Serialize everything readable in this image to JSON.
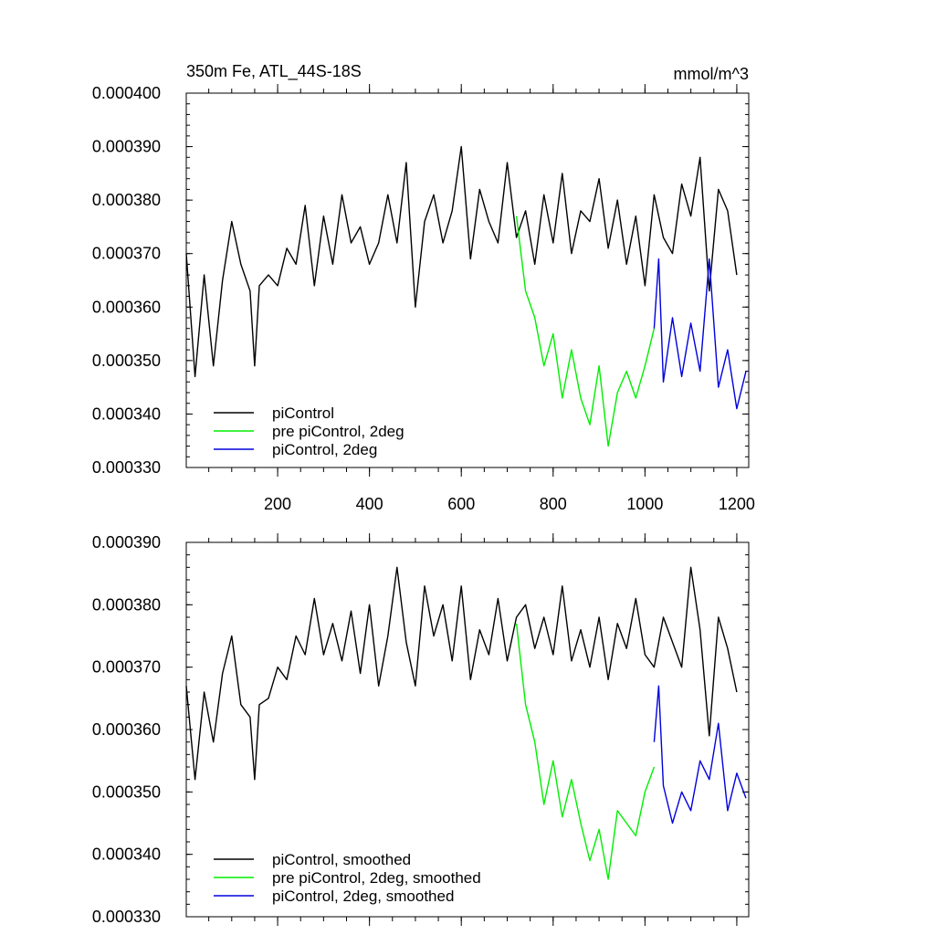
{
  "chart_data": [
    {
      "type": "line",
      "title": "350m Fe, ATL_44S-18S",
      "units": "mmol/m^3",
      "xlim": [
        1,
        1226
      ],
      "ylim": [
        0.00033,
        0.0004
      ],
      "xticks": [
        200,
        400,
        600,
        800,
        1000,
        1200
      ],
      "yticks": [
        "0.000400",
        "0.000390",
        "0.000380",
        "0.000370",
        "0.000360",
        "0.000350",
        "0.000340",
        "0.000330"
      ],
      "show_xtick_labels": true,
      "legend_position": "bottom-left",
      "series": [
        {
          "name": "piControl",
          "color": "#000000",
          "x": [
            1,
            20,
            40,
            60,
            80,
            100,
            120,
            140,
            150,
            160,
            180,
            200,
            220,
            240,
            260,
            280,
            300,
            320,
            340,
            360,
            380,
            400,
            420,
            440,
            460,
            480,
            500,
            520,
            540,
            560,
            580,
            600,
            620,
            640,
            660,
            680,
            700,
            720,
            740,
            760,
            780,
            800,
            820,
            840,
            860,
            880,
            900,
            920,
            940,
            960,
            980,
            1000,
            1020,
            1040,
            1060,
            1080,
            1100,
            1120,
            1140,
            1160,
            1180,
            1200
          ],
          "y": [
            0.00037,
            0.000347,
            0.000366,
            0.000349,
            0.000365,
            0.000376,
            0.000368,
            0.000363,
            0.000349,
            0.000364,
            0.000366,
            0.000364,
            0.000371,
            0.000368,
            0.000379,
            0.000364,
            0.000377,
            0.000368,
            0.000381,
            0.000372,
            0.000375,
            0.000368,
            0.000372,
            0.000381,
            0.000372,
            0.000387,
            0.00036,
            0.000376,
            0.000381,
            0.000372,
            0.000378,
            0.00039,
            0.000369,
            0.000382,
            0.000376,
            0.000372,
            0.000387,
            0.000373,
            0.000378,
            0.000368,
            0.000381,
            0.000372,
            0.000385,
            0.00037,
            0.000378,
            0.000376,
            0.000384,
            0.000371,
            0.00038,
            0.000368,
            0.000377,
            0.000364,
            0.000381,
            0.000373,
            0.00037,
            0.000383,
            0.000377,
            0.000388,
            0.000363,
            0.000382,
            0.000378,
            0.000366
          ]
        },
        {
          "name": "pre piControl, 2deg",
          "color": "#00ee00",
          "x": [
            720,
            740,
            760,
            780,
            800,
            820,
            840,
            860,
            880,
            900,
            920,
            940,
            960,
            980,
            1000,
            1020
          ],
          "y": [
            0.000377,
            0.000363,
            0.000358,
            0.000349,
            0.000355,
            0.000343,
            0.000352,
            0.000343,
            0.000338,
            0.000349,
            0.000334,
            0.000344,
            0.000348,
            0.000343,
            0.000349,
            0.000356
          ]
        },
        {
          "name": "piControl, 2deg",
          "color": "#0000dd",
          "x": [
            1020,
            1030,
            1040,
            1060,
            1080,
            1100,
            1120,
            1140,
            1160,
            1180,
            1200,
            1220
          ],
          "y": [
            0.000356,
            0.000369,
            0.000346,
            0.000358,
            0.000347,
            0.000357,
            0.000348,
            0.000369,
            0.000345,
            0.000352,
            0.000341,
            0.000348
          ]
        }
      ]
    },
    {
      "type": "line",
      "title": "",
      "units": "",
      "xlim": [
        1,
        1226
      ],
      "ylim": [
        0.00033,
        0.00039
      ],
      "xticks": [
        200,
        400,
        600,
        800,
        1000,
        1200
      ],
      "yticks": [
        "0.000390",
        "0.000380",
        "0.000370",
        "0.000360",
        "0.000350",
        "0.000340",
        "0.000330"
      ],
      "show_xtick_labels": false,
      "legend_position": "bottom-left",
      "series": [
        {
          "name": "piControl, smoothed",
          "color": "#000000",
          "x": [
            1,
            20,
            40,
            60,
            80,
            100,
            120,
            140,
            150,
            160,
            180,
            200,
            220,
            240,
            260,
            280,
            300,
            320,
            340,
            360,
            380,
            400,
            420,
            440,
            460,
            480,
            500,
            520,
            540,
            560,
            580,
            600,
            620,
            640,
            660,
            680,
            700,
            720,
            740,
            760,
            780,
            800,
            820,
            840,
            860,
            880,
            900,
            920,
            940,
            960,
            980,
            1000,
            1020,
            1040,
            1060,
            1080,
            1100,
            1120,
            1140,
            1160,
            1180,
            1200
          ],
          "y": [
            0.000367,
            0.000352,
            0.000366,
            0.000358,
            0.000369,
            0.000375,
            0.000364,
            0.000362,
            0.000352,
            0.000364,
            0.000365,
            0.00037,
            0.000368,
            0.000375,
            0.000372,
            0.000381,
            0.000372,
            0.000377,
            0.000371,
            0.000379,
            0.000369,
            0.00038,
            0.000367,
            0.000375,
            0.000386,
            0.000374,
            0.000367,
            0.000383,
            0.000375,
            0.00038,
            0.000371,
            0.000383,
            0.000368,
            0.000376,
            0.000372,
            0.000381,
            0.000371,
            0.000378,
            0.00038,
            0.000373,
            0.000378,
            0.000372,
            0.000383,
            0.000371,
            0.000376,
            0.00037,
            0.000378,
            0.000368,
            0.000377,
            0.000373,
            0.000381,
            0.000372,
            0.00037,
            0.000378,
            0.000374,
            0.00037,
            0.000386,
            0.000376,
            0.000359,
            0.000378,
            0.000373,
            0.000366
          ]
        },
        {
          "name": "pre piControl, 2deg, smoothed",
          "color": "#00ee00",
          "x": [
            720,
            740,
            760,
            780,
            800,
            820,
            840,
            860,
            880,
            900,
            920,
            940,
            960,
            980,
            1000,
            1020
          ],
          "y": [
            0.000377,
            0.000364,
            0.000358,
            0.000348,
            0.000355,
            0.000346,
            0.000352,
            0.000345,
            0.000339,
            0.000344,
            0.000336,
            0.000347,
            0.000345,
            0.000343,
            0.00035,
            0.000354
          ]
        },
        {
          "name": "piControl, 2deg, smoothed",
          "color": "#0000dd",
          "x": [
            1020,
            1030,
            1040,
            1060,
            1080,
            1100,
            1120,
            1140,
            1160,
            1180,
            1200,
            1220
          ],
          "y": [
            0.000358,
            0.000367,
            0.000351,
            0.000345,
            0.00035,
            0.000347,
            0.000355,
            0.000352,
            0.000361,
            0.000347,
            0.000353,
            0.000349
          ]
        }
      ]
    }
  ]
}
